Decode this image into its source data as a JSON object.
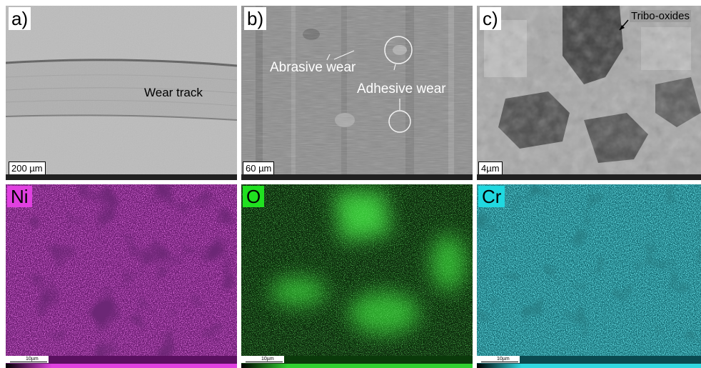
{
  "panels": {
    "a": {
      "label": "a)",
      "scale": "200 µm",
      "annotation": "Wear track"
    },
    "b": {
      "label": "b)",
      "scale": "60 µm",
      "annotations": [
        "Abrasive wear",
        "Adhesive wear"
      ]
    },
    "c": {
      "label": "c)",
      "scale": "4µm",
      "annotation": "Tribo-oxides"
    }
  },
  "maps": [
    {
      "element": "Ni",
      "scale": "10µm",
      "color": "#c020c0",
      "label_bg": "#e040e0"
    },
    {
      "element": "O",
      "scale": "10µm",
      "color": "#30c030",
      "label_bg": "#20e020"
    },
    {
      "element": "Cr",
      "scale": "10µm",
      "color": "#20b8c0",
      "label_bg": "#20d8e0"
    }
  ]
}
